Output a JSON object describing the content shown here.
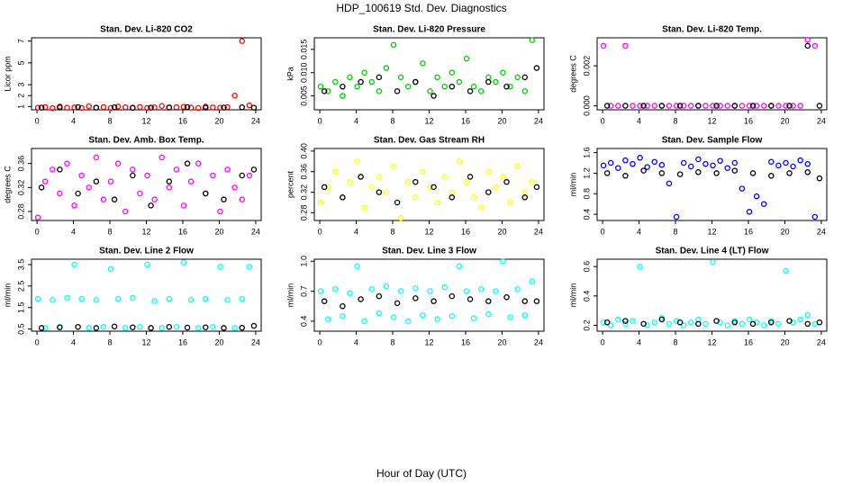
{
  "title": "HDP_100619  Std. Dev. Diagnostics",
  "xlabel": "Hour of Day (UTC)",
  "chart_data": [
    {
      "type": "scatter",
      "title": "Stan. Dev. Li-820 CO2",
      "ylabel": "Licor ppm",
      "xlim": [
        -0.6,
        24.6
      ],
      "xticks": [
        0,
        4,
        8,
        12,
        16,
        20,
        24
      ],
      "ylim": [
        0.7,
        7.3
      ],
      "yticks": [
        1,
        2,
        3,
        5,
        7
      ],
      "series": [
        {
          "color": "#ff0000",
          "x": [
            0.1,
            0.9,
            1.7,
            2.5,
            3.3,
            4.1,
            4.9,
            5.7,
            6.5,
            7.3,
            8.1,
            8.9,
            9.7,
            10.5,
            11.3,
            12.1,
            12.9,
            13.7,
            14.5,
            15.3,
            16.1,
            16.9,
            17.7,
            18.5,
            19.3,
            20.1,
            20.9,
            21.7,
            22.5,
            23.3
          ],
          "values": [
            0.9,
            0.95,
            0.85,
            1.0,
            0.9,
            0.92,
            0.88,
            1.02,
            0.9,
            0.95,
            0.87,
            1.0,
            0.93,
            0.9,
            0.96,
            0.88,
            0.92,
            1.05,
            0.9,
            0.94,
            0.98,
            0.9,
            0.87,
            1.0,
            0.92,
            0.9,
            0.95,
            2.0,
            7.0,
            1.1
          ]
        },
        {
          "color": "#000000",
          "x": [
            0.5,
            2.5,
            4.5,
            6.5,
            8.5,
            10.5,
            12.5,
            14.5,
            16.5,
            18.5,
            20.5,
            22.5,
            23.8
          ],
          "values": [
            0.9,
            0.92,
            0.95,
            0.9,
            0.93,
            0.88,
            0.9,
            0.92,
            0.95,
            0.9,
            0.91,
            0.93,
            0.9
          ]
        }
      ]
    },
    {
      "type": "scatter",
      "title": "Stan. Dev. Li-820 Pressure",
      "ylabel": "kPa",
      "xlim": [
        -0.6,
        24.6
      ],
      "xticks": [
        0,
        4,
        8,
        12,
        16,
        20,
        24
      ],
      "ylim": [
        0.002,
        0.0175
      ],
      "yticks": [
        0.005,
        {
          "value": 0.01,
          "label": "0.010"
        },
        0.015
      ],
      "series": [
        {
          "color": "#00cc00",
          "x": [
            0.1,
            0.9,
            1.7,
            2.5,
            3.3,
            4.1,
            4.9,
            5.7,
            6.5,
            7.3,
            8.1,
            8.9,
            9.7,
            10.5,
            11.3,
            12.1,
            12.9,
            13.7,
            14.5,
            15.3,
            16.1,
            16.9,
            17.7,
            18.5,
            19.3,
            20.1,
            20.9,
            21.7,
            22.5,
            23.3
          ],
          "values": [
            0.007,
            0.006,
            0.008,
            0.005,
            0.009,
            0.007,
            0.01,
            0.008,
            0.006,
            0.011,
            0.016,
            0.009,
            0.007,
            0.008,
            0.012,
            0.006,
            0.009,
            0.007,
            0.01,
            0.008,
            0.013,
            0.007,
            0.006,
            0.009,
            0.008,
            0.01,
            0.007,
            0.009,
            0.006,
            0.017
          ]
        },
        {
          "color": "#000000",
          "x": [
            0.5,
            2.5,
            4.5,
            6.5,
            8.5,
            10.5,
            12.5,
            14.5,
            16.5,
            18.5,
            20.5,
            22.5,
            23.8
          ],
          "values": [
            0.006,
            0.007,
            0.008,
            0.009,
            0.006,
            0.008,
            0.005,
            0.007,
            0.006,
            0.008,
            0.007,
            0.009,
            0.011
          ]
        }
      ]
    },
    {
      "type": "scatter",
      "title": "Stan. Dev. Li-820 Temp.",
      "ylabel": "degrees C",
      "xlim": [
        -0.6,
        24.6
      ],
      "xticks": [
        0,
        4,
        8,
        12,
        16,
        20,
        24
      ],
      "ylim": [
        -0.0002,
        0.0034
      ],
      "yticks": [
        {
          "value": 0,
          "label": "0.000"
        },
        0.002
      ],
      "series": [
        {
          "color": "#ff00ff",
          "x": [
            0.1,
            0.9,
            1.7,
            2.5,
            3.3,
            4.1,
            4.9,
            5.7,
            6.5,
            7.3,
            8.1,
            8.9,
            9.7,
            10.5,
            11.3,
            12.1,
            12.9,
            13.7,
            14.5,
            15.3,
            16.1,
            16.9,
            17.7,
            18.5,
            19.3,
            20.1,
            20.9,
            21.7,
            22.5,
            23.3
          ],
          "values": [
            0.003,
            0,
            0,
            0.003,
            0,
            0,
            0,
            0,
            0,
            0,
            0,
            0,
            0,
            0,
            0,
            0,
            0,
            0,
            0,
            0,
            0,
            0,
            0,
            0,
            0,
            0,
            0,
            0,
            0.0033,
            0.003
          ]
        },
        {
          "color": "#000000",
          "x": [
            0.5,
            2.5,
            4.5,
            6.5,
            8.5,
            10.5,
            12.5,
            14.5,
            16.5,
            18.5,
            20.5,
            22.5,
            23.8
          ],
          "values": [
            0,
            0,
            0,
            0,
            0,
            0,
            0,
            0,
            0,
            0,
            0,
            0.003,
            0
          ]
        }
      ]
    },
    {
      "type": "scatter",
      "title": "Stan. Dev. Amb. Box Temp.",
      "ylabel": "degrees C",
      "xlim": [
        -0.6,
        24.6
      ],
      "xticks": [
        0,
        4,
        8,
        12,
        16,
        20,
        24
      ],
      "ylim": [
        0.265,
        0.385
      ],
      "yticks": [
        0.28,
        0.32,
        0.36
      ],
      "series": [
        {
          "color": "#ff00ff",
          "x": [
            0.1,
            0.9,
            1.7,
            2.5,
            3.3,
            4.1,
            4.9,
            5.7,
            6.5,
            7.3,
            8.1,
            8.9,
            9.7,
            10.5,
            11.3,
            12.1,
            12.9,
            13.7,
            14.5,
            15.3,
            16.1,
            16.9,
            17.7,
            18.5,
            19.3,
            20.1,
            20.9,
            21.7,
            22.5,
            23.3
          ],
          "values": [
            0.27,
            0.33,
            0.35,
            0.31,
            0.36,
            0.29,
            0.34,
            0.32,
            0.37,
            0.3,
            0.33,
            0.36,
            0.28,
            0.35,
            0.31,
            0.34,
            0.3,
            0.37,
            0.32,
            0.35,
            0.29,
            0.33,
            0.36,
            0.31,
            0.34,
            0.28,
            0.35,
            0.32,
            0.3,
            0.34
          ]
        },
        {
          "color": "#000000",
          "x": [
            0.5,
            2.5,
            4.5,
            6.5,
            8.5,
            10.5,
            12.5,
            14.5,
            16.5,
            18.5,
            20.5,
            22.5,
            23.8
          ],
          "values": [
            0.32,
            0.35,
            0.31,
            0.33,
            0.3,
            0.34,
            0.29,
            0.33,
            0.36,
            0.31,
            0.3,
            0.34,
            0.35
          ]
        }
      ]
    },
    {
      "type": "scatter",
      "title": "Stan. Dev. Gas Stream RH",
      "ylabel": "percent",
      "xlim": [
        -0.6,
        24.6
      ],
      "xticks": [
        0,
        4,
        8,
        12,
        16,
        20,
        24
      ],
      "ylim": [
        0.265,
        0.405
      ],
      "yticks": [
        0.28,
        0.32,
        0.36,
        {
          "value": 0.4,
          "label": "0.40"
        }
      ],
      "series": [
        {
          "color": "#ffff00",
          "x": [
            0.1,
            0.9,
            1.7,
            2.5,
            3.3,
            4.1,
            4.9,
            5.7,
            6.5,
            7.3,
            8.1,
            8.9,
            9.7,
            10.5,
            11.3,
            12.1,
            12.9,
            13.7,
            14.5,
            15.3,
            16.1,
            16.9,
            17.7,
            18.5,
            19.3,
            20.1,
            20.9,
            21.7,
            22.5,
            23.3
          ],
          "values": [
            0.3,
            0.33,
            0.36,
            0.31,
            0.34,
            0.38,
            0.29,
            0.33,
            0.35,
            0.32,
            0.37,
            0.27,
            0.34,
            0.31,
            0.36,
            0.33,
            0.3,
            0.35,
            0.32,
            0.38,
            0.34,
            0.31,
            0.29,
            0.36,
            0.33,
            0.35,
            0.3,
            0.37,
            0.32,
            0.34
          ]
        },
        {
          "color": "#000000",
          "x": [
            0.5,
            2.5,
            4.5,
            6.5,
            8.5,
            10.5,
            12.5,
            14.5,
            16.5,
            18.5,
            20.5,
            22.5,
            23.8
          ],
          "values": [
            0.33,
            0.31,
            0.35,
            0.32,
            0.3,
            0.34,
            0.33,
            0.31,
            0.35,
            0.32,
            0.34,
            0.31,
            0.33
          ]
        }
      ]
    },
    {
      "type": "scatter",
      "title": "Stan. Dev. Sample Flow",
      "ylabel": "ml/min",
      "xlim": [
        -0.6,
        24.6
      ],
      "xticks": [
        0,
        4,
        8,
        12,
        16,
        20,
        24
      ],
      "ylim": [
        0.28,
        1.68
      ],
      "yticks": [
        0.4,
        0.8,
        1.2,
        1.6
      ],
      "series": [
        {
          "color": "#0000ff",
          "x": [
            0.1,
            0.9,
            1.7,
            2.5,
            3.3,
            4.1,
            4.9,
            5.7,
            6.5,
            7.3,
            8.1,
            8.9,
            9.7,
            10.5,
            11.3,
            12.1,
            12.9,
            13.7,
            14.5,
            15.3,
            16.1,
            16.9,
            17.7,
            18.5,
            19.3,
            20.1,
            20.9,
            21.7,
            22.5,
            23.3
          ],
          "values": [
            1.35,
            1.4,
            1.3,
            1.45,
            1.38,
            1.5,
            1.32,
            1.42,
            1.36,
            1.0,
            0.35,
            1.4,
            1.33,
            1.47,
            1.38,
            1.35,
            1.44,
            1.3,
            1.4,
            0.9,
            0.45,
            0.75,
            0.6,
            1.42,
            1.35,
            1.4,
            1.33,
            1.45,
            1.38,
            0.35
          ]
        },
        {
          "color": "#000000",
          "x": [
            0.5,
            2.5,
            4.5,
            6.5,
            8.5,
            10.5,
            12.5,
            14.5,
            16.5,
            18.5,
            20.5,
            22.5,
            23.8
          ],
          "values": [
            1.2,
            1.15,
            1.25,
            1.2,
            1.18,
            1.22,
            1.2,
            1.25,
            1.2,
            1.15,
            1.2,
            1.22,
            1.1
          ]
        }
      ]
    },
    {
      "type": "scatter",
      "title": "Stan. Dev. Line 2 Flow",
      "ylabel": "ml/min",
      "xlim": [
        -0.6,
        24.6
      ],
      "xticks": [
        0,
        4,
        8,
        12,
        16,
        20,
        24
      ],
      "ylim": [
        0.4,
        3.75
      ],
      "yticks": [
        0.5,
        1.5,
        2.5,
        3.5
      ],
      "series": [
        {
          "color": "#00ffff",
          "x": [
            0.1,
            0.9,
            1.7,
            2.5,
            3.3,
            4.1,
            4.9,
            5.7,
            6.5,
            7.3,
            8.1,
            8.9,
            9.7,
            10.5,
            11.3,
            12.1,
            12.9,
            13.7,
            14.5,
            15.3,
            16.1,
            16.9,
            17.7,
            18.5,
            19.3,
            20.1,
            20.9,
            21.7,
            22.5,
            23.3
          ],
          "values": [
            1.9,
            0.55,
            1.85,
            0.6,
            1.95,
            3.5,
            1.9,
            0.55,
            1.85,
            0.6,
            3.3,
            1.9,
            0.55,
            1.95,
            0.6,
            3.5,
            1.8,
            0.55,
            1.9,
            0.6,
            3.6,
            1.85,
            0.55,
            1.9,
            0.6,
            3.4,
            1.85,
            0.55,
            1.9,
            3.4
          ]
        },
        {
          "color": "#000000",
          "x": [
            0.5,
            2.5,
            4.5,
            6.5,
            8.5,
            10.5,
            12.5,
            14.5,
            16.5,
            18.5,
            20.5,
            22.5,
            23.8
          ],
          "values": [
            0.55,
            0.58,
            0.6,
            0.55,
            0.62,
            0.58,
            0.55,
            0.6,
            0.57,
            0.58,
            0.55,
            0.56,
            0.65
          ]
        }
      ]
    },
    {
      "type": "scatter",
      "title": "Stan. Dev. Line 3 Flow",
      "ylabel": "ml/min",
      "xlim": [
        -0.6,
        24.6
      ],
      "xticks": [
        0,
        4,
        8,
        12,
        16,
        20,
        24
      ],
      "ylim": [
        0.3,
        1.02
      ],
      "yticks": [
        0.4,
        0.7,
        {
          "value": 1,
          "label": "1.0"
        }
      ],
      "series": [
        {
          "color": "#00ffff",
          "x": [
            0.1,
            0.9,
            1.7,
            2.5,
            3.3,
            4.1,
            4.9,
            5.7,
            6.5,
            7.3,
            8.1,
            8.9,
            9.7,
            10.5,
            11.3,
            12.1,
            12.9,
            13.7,
            14.5,
            15.3,
            16.1,
            16.9,
            17.7,
            18.5,
            19.3,
            20.1,
            20.9,
            21.7,
            22.5,
            23.3
          ],
          "values": [
            0.7,
            0.42,
            0.72,
            0.45,
            0.68,
            0.95,
            0.4,
            0.72,
            0.48,
            0.75,
            0.44,
            0.7,
            0.4,
            0.73,
            0.46,
            0.7,
            0.42,
            0.74,
            0.45,
            0.95,
            0.7,
            0.43,
            0.72,
            0.47,
            0.7,
            1.0,
            0.44,
            0.72,
            0.46,
            0.8
          ]
        },
        {
          "color": "#000000",
          "x": [
            0.5,
            2.5,
            4.5,
            6.5,
            8.5,
            10.5,
            12.5,
            14.5,
            16.5,
            18.5,
            20.5,
            22.5,
            23.8
          ],
          "values": [
            0.6,
            0.55,
            0.62,
            0.65,
            0.58,
            0.63,
            0.6,
            0.65,
            0.62,
            0.6,
            0.64,
            0.6,
            0.6
          ]
        }
      ]
    },
    {
      "type": "scatter",
      "title": "Stan. Dev. Line 4 (LT) Flow",
      "ylabel": "ml/min",
      "xlim": [
        -0.6,
        24.6
      ],
      "xticks": [
        0,
        4,
        8,
        12,
        16,
        20,
        24
      ],
      "ylim": [
        0.16,
        0.65
      ],
      "yticks": [
        0.2,
        0.4,
        0.6
      ],
      "series": [
        {
          "color": "#00ffff",
          "x": [
            0.1,
            0.9,
            1.7,
            2.5,
            3.3,
            4.1,
            4.9,
            5.7,
            6.5,
            7.3,
            8.1,
            8.9,
            9.7,
            10.5,
            11.3,
            12.1,
            12.9,
            13.7,
            14.5,
            15.3,
            16.1,
            16.9,
            17.7,
            18.5,
            19.3,
            20.1,
            20.9,
            21.7,
            22.5,
            23.3
          ],
          "values": [
            0.22,
            0.2,
            0.24,
            0.21,
            0.23,
            0.6,
            0.2,
            0.22,
            0.25,
            0.21,
            0.23,
            0.2,
            0.22,
            0.24,
            0.21,
            0.63,
            0.22,
            0.2,
            0.23,
            0.21,
            0.24,
            0.22,
            0.2,
            0.23,
            0.21,
            0.57,
            0.22,
            0.24,
            0.27,
            0.21
          ]
        },
        {
          "color": "#000000",
          "x": [
            0.5,
            2.5,
            4.5,
            6.5,
            8.5,
            10.5,
            12.5,
            14.5,
            16.5,
            18.5,
            20.5,
            22.5,
            23.8
          ],
          "values": [
            0.22,
            0.23,
            0.21,
            0.24,
            0.22,
            0.21,
            0.23,
            0.22,
            0.21,
            0.22,
            0.23,
            0.21,
            0.22
          ]
        }
      ]
    }
  ]
}
